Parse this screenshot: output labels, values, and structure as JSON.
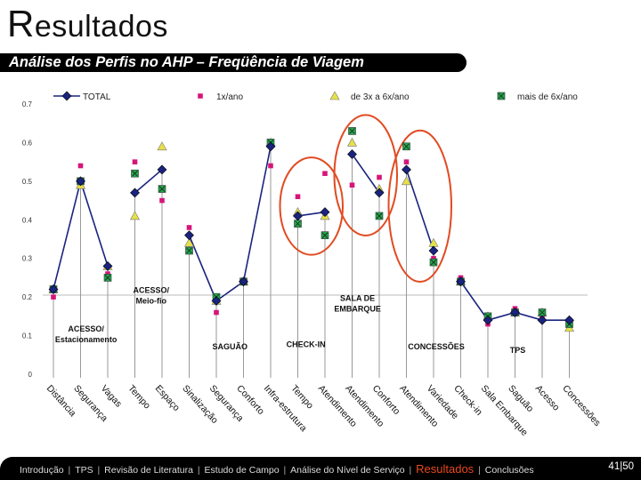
{
  "slide": {
    "title_first": "R",
    "title_rest": "esultados",
    "subtitle": "Análise dos Perfis no AHP – Freqüência de Viagem",
    "page": "41|50"
  },
  "footer": {
    "items": [
      {
        "label": "Introdução",
        "active": false
      },
      {
        "label": "TPS",
        "active": false
      },
      {
        "label": "Revisão de Literatura",
        "active": false
      },
      {
        "label": "Estudo de Campo",
        "active": false
      },
      {
        "label": "Análise do Nível de Serviço",
        "active": false
      },
      {
        "label": "Resultados",
        "active": true
      },
      {
        "label": "Conclusões",
        "active": false
      }
    ]
  },
  "colors": {
    "total": "#1a237e",
    "freq1": "#d6157a",
    "freq2": "#e6e04a",
    "freq3": "#1fa84a",
    "highlight": "#e14b22"
  },
  "chart_data": {
    "type": "line",
    "ylim": [
      0,
      0.7
    ],
    "yticks": [
      0,
      0.1,
      0.2,
      0.3,
      0.4,
      0.5,
      0.6,
      0.7
    ],
    "ytick_labels": [
      "0",
      "0.1",
      "0.2",
      "0.3",
      "0.4",
      "0.5",
      "0.6",
      "0.7"
    ],
    "categories": [
      "Distância",
      "Segurança",
      "Vagas",
      "Tempo",
      "Espaço",
      "Sinalização",
      "Segurança",
      "Conforto",
      "Infra-estrutura",
      "Tempo",
      "Atendimento",
      "Atendimento",
      "Conforto",
      "Atendimento",
      "Variedade",
      "Check-in",
      "Sala Embarque",
      "Saguão",
      "Acesso",
      "Concessões"
    ],
    "groups": [
      [
        0,
        1,
        2
      ],
      [
        3,
        4
      ],
      [
        5,
        6,
        7,
        8
      ],
      [
        9,
        10
      ],
      [
        11,
        12
      ],
      [
        13,
        14
      ],
      [
        15,
        16,
        17,
        18,
        19
      ]
    ],
    "group_labels": [
      {
        "lines": [
          "ACESSO/",
          "Estacionamento"
        ],
        "x": 1.2,
        "y": 0.085
      },
      {
        "lines": [
          "ACESSO/",
          "Meio-fio"
        ],
        "x": 3.6,
        "y": 0.185
      },
      {
        "lines": [
          "SAGUÃO"
        ],
        "x": 6.5,
        "y": 0.065
      },
      {
        "lines": [
          "CHECK-IN"
        ],
        "x": 9.3,
        "y": 0.07
      },
      {
        "lines": [
          "SALA DE",
          "EMBARQUE"
        ],
        "x": 11.2,
        "y": 0.165
      },
      {
        "lines": [
          "CONCESSÕES"
        ],
        "x": 14.1,
        "y": 0.065
      },
      {
        "lines": [
          "TPS"
        ],
        "x": 17.1,
        "y": 0.055
      }
    ],
    "series": [
      {
        "name": "TOTAL",
        "marker": "diamond",
        "values": [
          0.22,
          0.5,
          0.28,
          0.47,
          0.53,
          0.36,
          0.19,
          0.24,
          0.59,
          0.41,
          0.42,
          0.57,
          0.47,
          0.53,
          0.32,
          0.24,
          0.14,
          0.16,
          0.14,
          0.14
        ]
      },
      {
        "name": "1x/ano",
        "marker": "square",
        "values": [
          0.2,
          0.54,
          0.26,
          0.55,
          0.45,
          0.38,
          0.16,
          0.24,
          0.54,
          0.46,
          0.52,
          0.49,
          0.51,
          0.55,
          0.3,
          0.25,
          0.13,
          0.17,
          0.15,
          0.14
        ]
      },
      {
        "name": "de 3x a 6x/ano",
        "marker": "triangle",
        "values": [
          0.22,
          0.49,
          0.28,
          0.41,
          0.59,
          0.34,
          0.19,
          0.24,
          0.6,
          0.42,
          0.41,
          0.6,
          0.48,
          0.5,
          0.34,
          0.24,
          0.15,
          0.16,
          0.16,
          0.12
        ]
      },
      {
        "name": "mais de 6x/ano",
        "marker": "square-x",
        "values": [
          0.22,
          0.5,
          0.25,
          0.52,
          0.48,
          0.32,
          0.2,
          0.24,
          0.6,
          0.39,
          0.36,
          0.63,
          0.41,
          0.59,
          0.29,
          0.24,
          0.15,
          0.16,
          0.16,
          0.13
        ]
      }
    ],
    "highlight_groups": [
      3,
      4,
      5
    ],
    "grid": false,
    "legend": "top"
  }
}
